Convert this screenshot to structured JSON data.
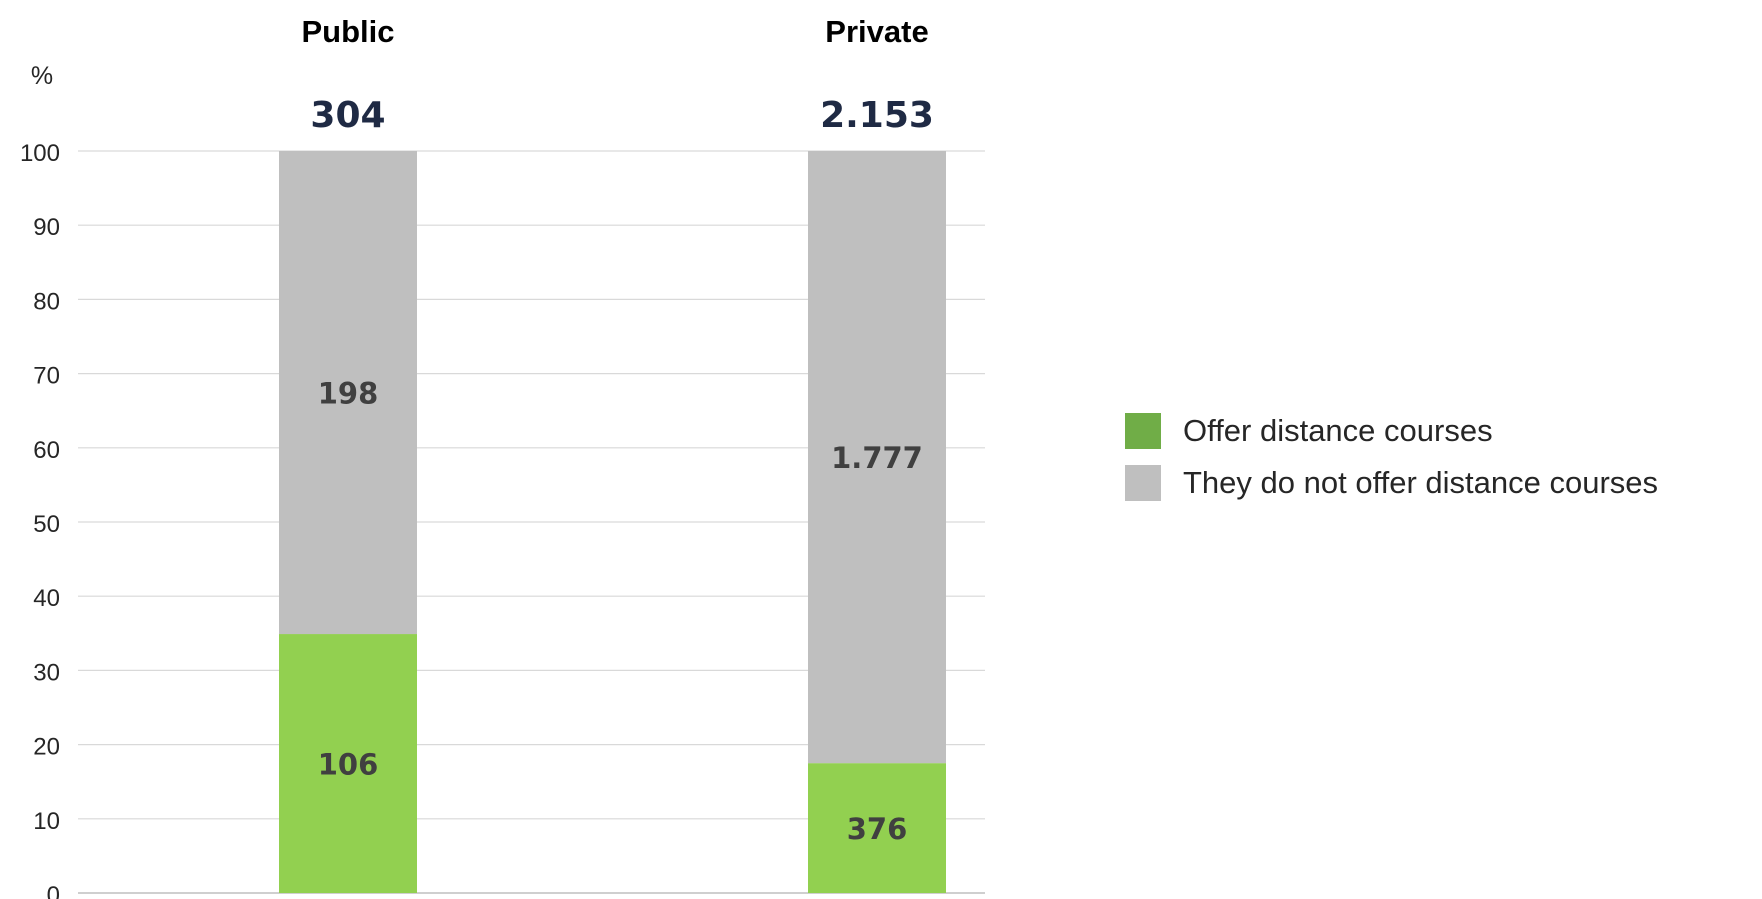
{
  "chart_data": {
    "type": "bar",
    "stacked": true,
    "ylabel": "%",
    "ylim": [
      0,
      100
    ],
    "yticks": [
      0,
      10,
      20,
      30,
      40,
      50,
      60,
      70,
      80,
      90,
      100
    ],
    "grid": true,
    "categories": [
      "Public",
      "Private"
    ],
    "totals": [
      "304",
      "2.153"
    ],
    "series": [
      {
        "name": "Offer distance courses",
        "color": "#92d050",
        "legend_color": "#70ad47",
        "percent": [
          34.9,
          17.5
        ],
        "labels": [
          "106",
          "376"
        ]
      },
      {
        "name": "They do not offer distance courses",
        "color": "#bfbfbf",
        "legend_color": "#bfbfbf",
        "percent": [
          65.1,
          82.5
        ],
        "labels": [
          "198",
          "1.777"
        ]
      }
    ],
    "legend_position": "right"
  }
}
